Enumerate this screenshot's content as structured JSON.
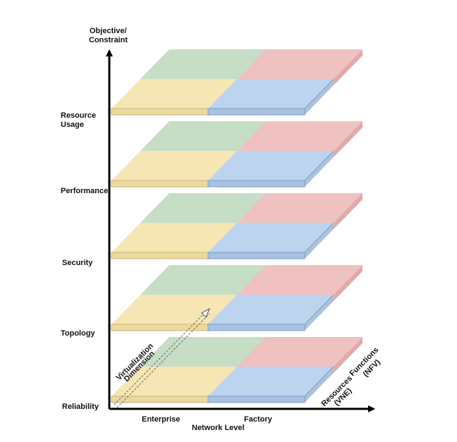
{
  "axes": {
    "y_title_line1": "Objective/",
    "y_title_line2": "Constraint",
    "x_title": "Network Level",
    "x_ticks": [
      "Enterprise",
      "Factory"
    ],
    "depth_title_line1": "Virtualization",
    "depth_title_line2": "Dimension",
    "side_labels": {
      "resources_line1": "Resources",
      "resources_line2": "(VNE)",
      "functions_line1": "Functions",
      "functions_line2": "(NFV)"
    }
  },
  "layers": [
    {
      "id": "resource-usage",
      "label_line1": "Resource",
      "label_line2": "Usage"
    },
    {
      "id": "performance",
      "label_line1": "Performance",
      "label_line2": ""
    },
    {
      "id": "security",
      "label_line1": "Security",
      "label_line2": ""
    },
    {
      "id": "topology",
      "label_line1": "Topology",
      "label_line2": ""
    },
    {
      "id": "reliability",
      "label_line1": "Reliability",
      "label_line2": ""
    }
  ],
  "quadrant_colors": {
    "front_left": "#f5e6b4",
    "front_right": "#bcd4f0",
    "back_left": "#c6dec6",
    "back_right": "#efc1c1",
    "front_left_side": "#ecd9a0",
    "front_right_side": "#a9c2e2",
    "right_side_back": "#e0aaaa"
  },
  "axis_color": "#000000"
}
